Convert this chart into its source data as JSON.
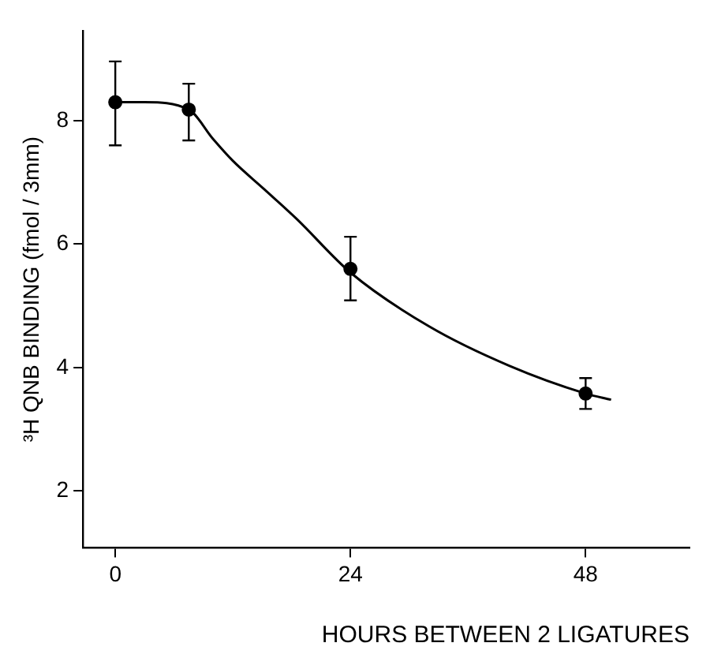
{
  "chart_data": {
    "type": "scatter",
    "xlabel": "HOURS BETWEEN 2 LIGATURES",
    "ylabel": "³H QNB BINDING (fmol / 3mm)",
    "xlim": [
      -3.3,
      58.6
    ],
    "ylim": [
      1.08,
      9.46
    ],
    "xticks": [
      0,
      24,
      48
    ],
    "yticks": [
      2,
      4,
      6,
      8
    ],
    "grid": false,
    "legend": false,
    "marker": "circle",
    "series": [
      {
        "type": "scatter",
        "color": "#000000",
        "x": [
          0,
          7.5,
          24,
          48
        ],
        "values": [
          8.3,
          8.18,
          5.6,
          3.58
        ],
        "errors": [
          [
            7.6,
            8.96
          ],
          [
            7.68,
            8.6
          ],
          [
            5.09,
            6.12
          ],
          [
            3.33,
            3.83
          ]
        ]
      },
      {
        "type": "line",
        "color": "#000000",
        "line_style": "solid",
        "marker": "none",
        "x": [
          0,
          3,
          7.5,
          10,
          12,
          15.2,
          18.5,
          24,
          32,
          40.2,
          48,
          50.6
        ],
        "values": [
          8.3,
          8.3,
          8.18,
          7.7,
          7.35,
          6.89,
          6.41,
          5.54,
          4.67,
          4.03,
          3.58,
          3.48
        ]
      }
    ]
  }
}
